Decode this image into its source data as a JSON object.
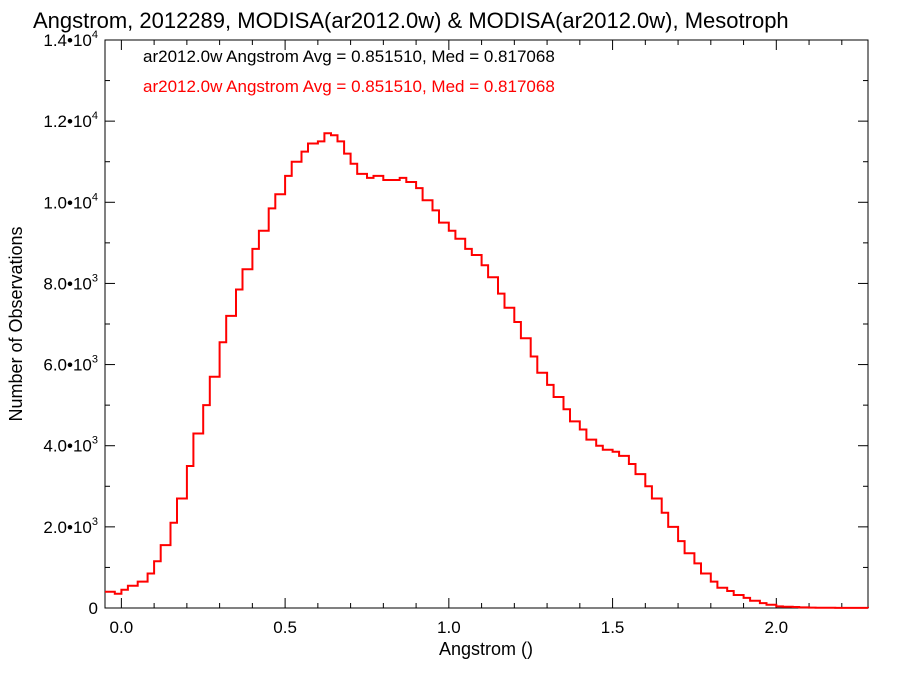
{
  "chart_data": {
    "type": "line",
    "title": "Angstrom, 2012289, MODISA(ar2012.0w) & MODISA(ar2012.0w), Mesotroph",
    "xlabel": "Angstrom ()",
    "ylabel": "Number of Observations",
    "xlim": [
      -0.05,
      2.28
    ],
    "ylim": [
      0,
      14000
    ],
    "x_ticks": [
      {
        "value": 0.0,
        "label": "0.0"
      },
      {
        "value": 0.5,
        "label": "0.5"
      },
      {
        "value": 1.0,
        "label": "1.0"
      },
      {
        "value": 1.5,
        "label": "1.5"
      },
      {
        "value": 2.0,
        "label": "2.0"
      }
    ],
    "y_ticks": [
      {
        "value": 0,
        "mantissa": "0",
        "exp": ""
      },
      {
        "value": 2000,
        "mantissa": "2.0•10",
        "exp": "3"
      },
      {
        "value": 4000,
        "mantissa": "4.0•10",
        "exp": "3"
      },
      {
        "value": 6000,
        "mantissa": "6.0•10",
        "exp": "3"
      },
      {
        "value": 8000,
        "mantissa": "8.0•10",
        "exp": "3"
      },
      {
        "value": 10000,
        "mantissa": "1.0•10",
        "exp": "4"
      },
      {
        "value": 12000,
        "mantissa": "1.2•10",
        "exp": "4"
      },
      {
        "value": 14000,
        "mantissa": "1.4•10",
        "exp": "4"
      }
    ],
    "legend": [
      {
        "text": "ar2012.0w Angstrom Avg = 0.851510, Med = 0.817068",
        "color": "#000000"
      },
      {
        "text": "ar2012.0w Angstrom Avg = 0.851510, Med = 0.817068",
        "color": "#ff0000"
      }
    ],
    "legend_placement": "top-left",
    "style": "step",
    "series": [
      {
        "color": "#ff0000",
        "x": [
          -0.05,
          -0.02,
          0.0,
          0.02,
          0.05,
          0.08,
          0.1,
          0.12,
          0.15,
          0.17,
          0.2,
          0.22,
          0.25,
          0.27,
          0.3,
          0.32,
          0.35,
          0.37,
          0.4,
          0.42,
          0.45,
          0.47,
          0.5,
          0.52,
          0.55,
          0.57,
          0.6,
          0.62,
          0.64,
          0.66,
          0.68,
          0.7,
          0.72,
          0.75,
          0.77,
          0.8,
          0.82,
          0.85,
          0.87,
          0.9,
          0.92,
          0.95,
          0.97,
          1.0,
          1.02,
          1.05,
          1.07,
          1.1,
          1.12,
          1.15,
          1.17,
          1.2,
          1.22,
          1.25,
          1.27,
          1.3,
          1.32,
          1.35,
          1.37,
          1.4,
          1.42,
          1.45,
          1.47,
          1.5,
          1.52,
          1.55,
          1.57,
          1.6,
          1.62,
          1.65,
          1.67,
          1.7,
          1.72,
          1.75,
          1.77,
          1.8,
          1.82,
          1.85,
          1.87,
          1.9,
          1.92,
          1.95,
          1.97,
          2.0,
          2.02,
          2.05,
          2.07,
          2.1,
          2.12,
          2.15,
          2.18,
          2.22,
          2.28
        ],
        "values": [
          400,
          350,
          450,
          550,
          650,
          850,
          1150,
          1550,
          2100,
          2700,
          3500,
          4300,
          5000,
          5700,
          6550,
          7200,
          7850,
          8350,
          8850,
          9300,
          9850,
          10200,
          10650,
          11000,
          11250,
          11450,
          11500,
          11700,
          11650,
          11500,
          11200,
          10950,
          10700,
          10600,
          10650,
          10550,
          10550,
          10600,
          10500,
          10350,
          10050,
          9800,
          9500,
          9300,
          9100,
          8850,
          8700,
          8450,
          8150,
          7750,
          7400,
          7050,
          6650,
          6200,
          5800,
          5500,
          5200,
          4900,
          4600,
          4400,
          4150,
          4000,
          3900,
          3850,
          3750,
          3550,
          3300,
          3000,
          2700,
          2350,
          2000,
          1650,
          1350,
          1100,
          850,
          650,
          500,
          420,
          320,
          250,
          180,
          120,
          80,
          40,
          30,
          25,
          15,
          10,
          5,
          5,
          3,
          2,
          0
        ]
      }
    ]
  }
}
